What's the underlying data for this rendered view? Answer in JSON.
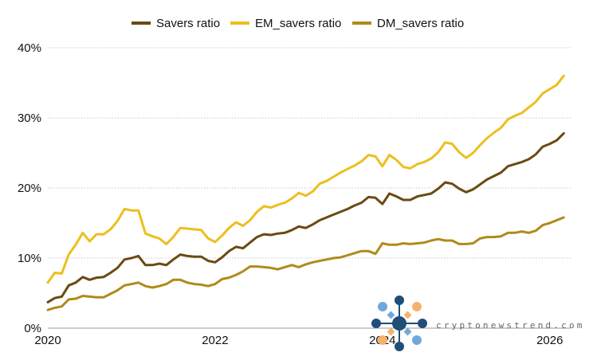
{
  "chart_data": {
    "type": "line",
    "title": "",
    "xlabel": "",
    "ylabel": "",
    "x_ticks": [
      "2020",
      "2022",
      "2024",
      "2026"
    ],
    "y_ticks": [
      "0%",
      "10%",
      "20%",
      "30%",
      "40%"
    ],
    "xlim": [
      2020.0,
      2026.25
    ],
    "ylim": [
      0,
      40
    ],
    "grid": "horizontal dotted",
    "legend_position": "top-center",
    "x": [
      2020.0,
      2020.083,
      2020.167,
      2020.25,
      2020.333,
      2020.417,
      2020.5,
      2020.583,
      2020.667,
      2020.75,
      2020.833,
      2020.917,
      2021.0,
      2021.083,
      2021.167,
      2021.25,
      2021.333,
      2021.417,
      2021.5,
      2021.583,
      2021.667,
      2021.75,
      2021.833,
      2021.917,
      2022.0,
      2022.083,
      2022.167,
      2022.25,
      2022.333,
      2022.417,
      2022.5,
      2022.583,
      2022.667,
      2022.75,
      2022.833,
      2022.917,
      2023.0,
      2023.083,
      2023.167,
      2023.25,
      2023.333,
      2023.417,
      2023.5,
      2023.583,
      2023.667,
      2023.75,
      2023.833,
      2023.917,
      2024.0,
      2024.083,
      2024.167,
      2024.25,
      2024.333,
      2024.417,
      2024.5,
      2024.583,
      2024.667,
      2024.75,
      2024.833,
      2024.917,
      2025.0,
      2025.083,
      2025.167,
      2025.25,
      2025.333,
      2025.417,
      2025.5,
      2025.583,
      2025.667,
      2025.75,
      2025.833,
      2025.917,
      2026.0,
      2026.083,
      2026.167
    ],
    "series": [
      {
        "name": "Savers ratio",
        "color": "#6b4a12",
        "values": [
          3.7,
          4.3,
          4.5,
          6.1,
          6.5,
          7.3,
          6.9,
          7.2,
          7.3,
          7.9,
          8.6,
          9.8,
          10.0,
          10.3,
          9.0,
          9.0,
          9.2,
          9.0,
          9.8,
          10.5,
          10.3,
          10.2,
          10.2,
          9.6,
          9.4,
          10.1,
          11.0,
          11.6,
          11.4,
          12.2,
          13.0,
          13.4,
          13.3,
          13.5,
          13.6,
          14.0,
          14.5,
          14.3,
          14.8,
          15.4,
          15.8,
          16.2,
          16.6,
          17.0,
          17.5,
          17.9,
          18.7,
          18.6,
          17.7,
          19.2,
          18.8,
          18.3,
          18.3,
          18.8,
          19.0,
          19.2,
          19.9,
          20.8,
          20.6,
          19.9,
          19.4,
          19.8,
          20.5,
          21.2,
          21.7,
          22.2,
          23.1,
          23.4,
          23.7,
          24.1,
          24.8,
          25.9,
          26.3,
          26.8,
          27.8
        ]
      },
      {
        "name": "EM_savers ratio",
        "color": "#ecbf1e",
        "values": [
          6.5,
          7.9,
          7.8,
          10.5,
          11.9,
          13.6,
          12.4,
          13.4,
          13.4,
          14.1,
          15.3,
          17.0,
          16.8,
          16.8,
          13.5,
          13.1,
          12.8,
          12.0,
          13.0,
          14.3,
          14.2,
          14.1,
          14.0,
          12.8,
          12.3,
          13.2,
          14.3,
          15.1,
          14.6,
          15.4,
          16.6,
          17.4,
          17.2,
          17.6,
          17.9,
          18.5,
          19.3,
          18.9,
          19.5,
          20.6,
          21.0,
          21.6,
          22.2,
          22.7,
          23.2,
          23.8,
          24.7,
          24.5,
          23.1,
          24.7,
          24.0,
          23.0,
          22.8,
          23.4,
          23.7,
          24.2,
          25.1,
          26.5,
          26.3,
          25.1,
          24.3,
          25.0,
          26.1,
          27.1,
          27.9,
          28.6,
          29.8,
          30.3,
          30.7,
          31.5,
          32.3,
          33.5,
          34.1,
          34.7,
          36.0
        ]
      },
      {
        "name": "DM_savers ratio",
        "color": "#b08a1a",
        "values": [
          2.6,
          2.9,
          3.1,
          4.1,
          4.2,
          4.6,
          4.5,
          4.4,
          4.4,
          4.9,
          5.4,
          6.1,
          6.3,
          6.5,
          6.0,
          5.8,
          6.0,
          6.3,
          6.9,
          6.9,
          6.5,
          6.3,
          6.2,
          6.0,
          6.3,
          7.0,
          7.2,
          7.6,
          8.1,
          8.8,
          8.8,
          8.7,
          8.6,
          8.4,
          8.7,
          9.0,
          8.7,
          9.1,
          9.4,
          9.6,
          9.8,
          10.0,
          10.1,
          10.4,
          10.7,
          11.0,
          11.0,
          10.6,
          12.1,
          11.9,
          11.9,
          12.1,
          12.0,
          12.1,
          12.2,
          12.5,
          12.7,
          12.5,
          12.5,
          12.0,
          12.0,
          12.1,
          12.8,
          13.0,
          13.0,
          13.1,
          13.6,
          13.6,
          13.8,
          13.6,
          13.9,
          14.7,
          15.0,
          15.4,
          15.8
        ]
      }
    ]
  },
  "legend": [
    {
      "label": "Savers ratio",
      "color": "#6b4a12"
    },
    {
      "label": "EM_savers ratio",
      "color": "#ecbf1e"
    },
    {
      "label": "DM_savers ratio",
      "color": "#b08a1a"
    }
  ],
  "watermark": "cryptonewstrend.com"
}
